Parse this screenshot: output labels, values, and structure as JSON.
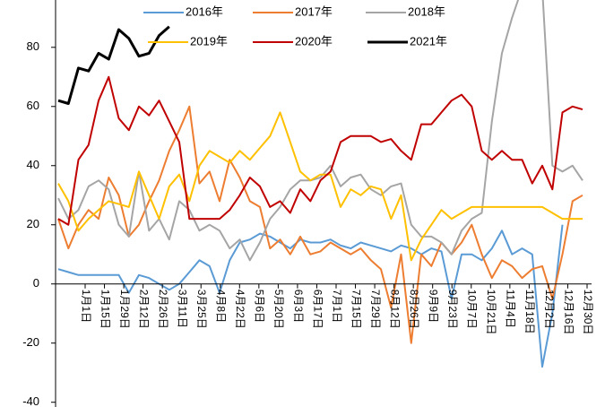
{
  "chart_data": {
    "type": "line",
    "categories": [
      "1月1日",
      null,
      "1月15日",
      null,
      "1月29日",
      null,
      "2月12日",
      null,
      "2月26日",
      null,
      "3月11日",
      null,
      "3月25日",
      null,
      "4月8日",
      null,
      "4月22日",
      null,
      "5月6日",
      null,
      "5月20日",
      null,
      "6月3日",
      null,
      "6月17日",
      null,
      "7月1日",
      null,
      "7月15日",
      null,
      "7月29日",
      null,
      "8月12日",
      null,
      "8月26日",
      null,
      "9月9日",
      null,
      "9月23日",
      null,
      "10月7日",
      null,
      "10月21日",
      null,
      "11月4日",
      null,
      "11月18日",
      null,
      "12月2日",
      null,
      "12月16日",
      null,
      "12月30日"
    ],
    "ylim": [
      -41,
      96
    ],
    "yticks": [
      -40,
      -20,
      0,
      20,
      40,
      60,
      80
    ],
    "series": [
      {
        "name": "2016年",
        "color": "#5b9bd5",
        "values": [
          5,
          4,
          3,
          3,
          3,
          3,
          3,
          -3,
          3,
          2,
          0,
          -2,
          0,
          4,
          8,
          6,
          -3,
          8,
          14,
          15,
          17,
          16,
          14,
          12,
          15,
          14,
          14,
          15,
          13,
          12,
          14,
          13,
          12,
          11,
          13,
          12,
          10,
          12,
          11,
          -5,
          10,
          10,
          8,
          12,
          18,
          10,
          12,
          10,
          -28,
          -10,
          20,
          null,
          null
        ]
      },
      {
        "name": "2017年",
        "color": "#ed7d31",
        "values": [
          22,
          12,
          20,
          25,
          22,
          36,
          30,
          16,
          20,
          28,
          35,
          45,
          52,
          60,
          34,
          38,
          28,
          42,
          36,
          28,
          26,
          12,
          15,
          10,
          16,
          10,
          11,
          14,
          12,
          10,
          12,
          8,
          5,
          -8,
          10,
          -20,
          10,
          6,
          14,
          10,
          14,
          20,
          10,
          2,
          8,
          6,
          2,
          5,
          6,
          -5,
          10,
          28,
          30
        ]
      },
      {
        "name": "2018年",
        "color": "#a5a5a5",
        "values": [
          29,
          22,
          25,
          33,
          35,
          32,
          20,
          16,
          38,
          18,
          22,
          15,
          28,
          25,
          18,
          20,
          18,
          12,
          15,
          8,
          14,
          22,
          26,
          32,
          35,
          35,
          36,
          40,
          33,
          36,
          37,
          32,
          30,
          33,
          34,
          20,
          16,
          16,
          14,
          10,
          18,
          22,
          24,
          55,
          78,
          90,
          100,
          100,
          100,
          40,
          38,
          40,
          35
        ]
      },
      {
        "name": "2019年",
        "color": "#ffc000",
        "values": [
          34,
          28,
          18,
          22,
          25,
          28,
          27,
          26,
          38,
          30,
          22,
          33,
          37,
          28,
          40,
          45,
          43,
          41,
          45,
          42,
          46,
          50,
          58,
          48,
          38,
          35,
          37,
          37,
          26,
          32,
          30,
          33,
          32,
          22,
          30,
          8,
          15,
          20,
          25,
          22,
          24,
          26,
          26,
          26,
          26,
          26,
          26,
          26,
          26,
          24,
          22,
          22,
          22
        ]
      },
      {
        "name": "2020年",
        "color": "#c00000",
        "values": [
          22,
          20,
          42,
          47,
          62,
          70,
          56,
          52,
          60,
          57,
          62,
          55,
          48,
          22,
          22,
          22,
          22,
          25,
          30,
          36,
          33,
          26,
          28,
          24,
          32,
          28,
          35,
          38,
          48,
          50,
          50,
          50,
          48,
          49,
          45,
          42,
          54,
          54,
          58,
          62,
          64,
          60,
          45,
          42,
          45,
          42,
          42,
          34,
          40,
          32,
          58,
          60,
          59
        ]
      },
      {
        "name": "2021年",
        "color": "#000000",
        "values": [
          62,
          61,
          73,
          72,
          78,
          76,
          86,
          83,
          77,
          78,
          84,
          87,
          null,
          null,
          null,
          null,
          null,
          null,
          null,
          null,
          null,
          null,
          null,
          null,
          null,
          null,
          null,
          null,
          null,
          null,
          null,
          null,
          null,
          null,
          null,
          null,
          null,
          null,
          null,
          null,
          null,
          null,
          null,
          null,
          null,
          null,
          null,
          null,
          null,
          null,
          null,
          null,
          null
        ]
      }
    ]
  }
}
